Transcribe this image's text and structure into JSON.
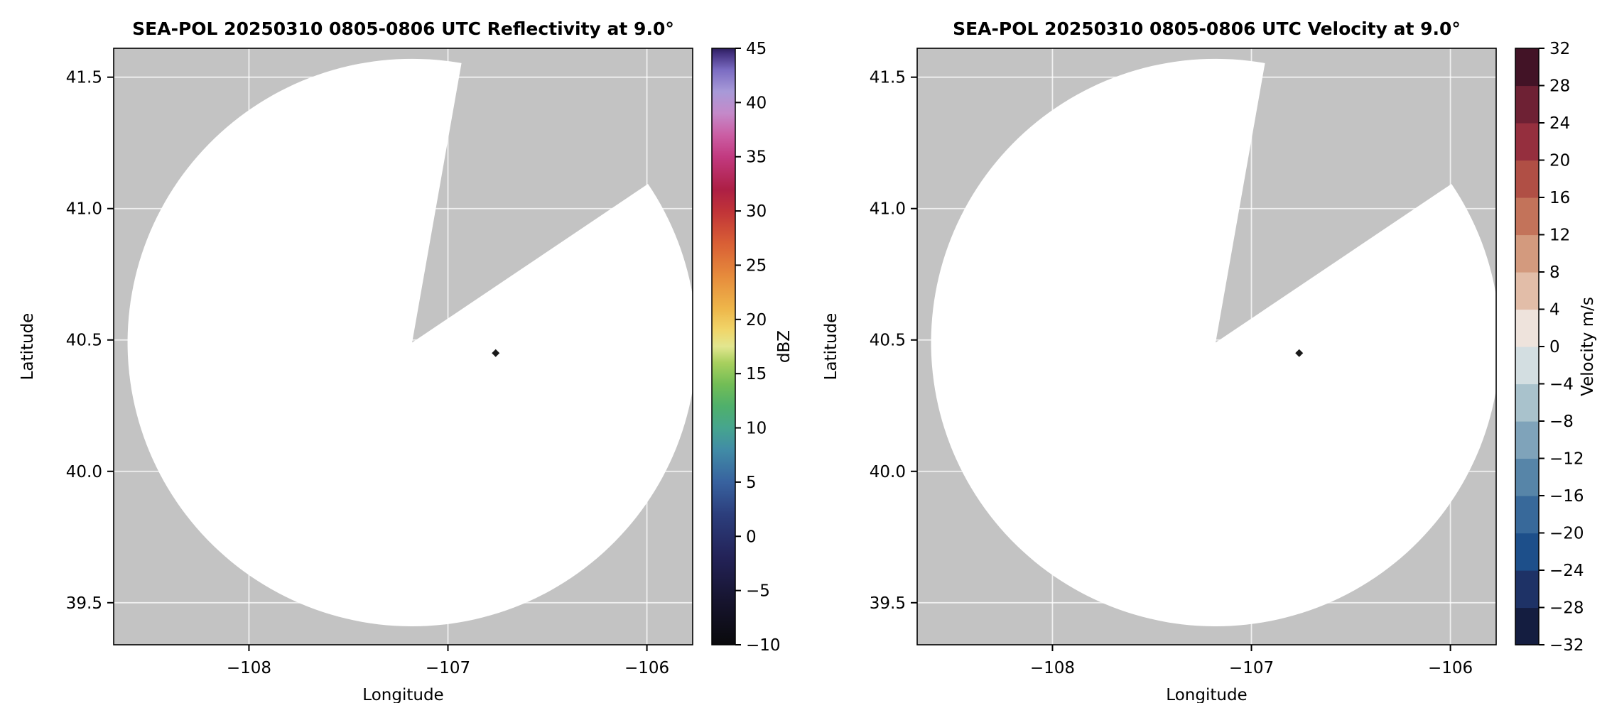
{
  "page": {
    "background_color": "#ffffff",
    "description": "Two-panel radar PPI figure: reflectivity and radial velocity at 9.0 degree elevation"
  },
  "chart_data": [
    {
      "type": "radar_ppi",
      "title": "SEA-POL 20250310 0805-0806 UTC Reflectivity at 9.0°",
      "xlabel": "Longitude",
      "ylabel": "Latitude",
      "xlim": [
        -108.68,
        -105.77
      ],
      "ylim": [
        39.34,
        41.61
      ],
      "xticks": [
        -108,
        -107,
        -106
      ],
      "xtick_labels": [
        "−108",
        "−107",
        "−106"
      ],
      "yticks": [
        39.5,
        40.0,
        40.5,
        41.0,
        41.5
      ],
      "ytick_labels": [
        "39.5",
        "40.0",
        "40.5",
        "41.0",
        "41.5"
      ],
      "grid": true,
      "grid_color": "#ffffff",
      "background_color": "#c3c3c3",
      "coverage": {
        "center_lon": -107.18,
        "center_lat": 40.49,
        "radius_lon_deg": 1.43,
        "radius_lat_deg": 1.08,
        "missing_sector_azimuth_deg": [
          10,
          56
        ],
        "fill": "#ffffff",
        "description": "White circular radar coverage disk with no echoes above threshold; grey area is no-data, including a wedge-shaped blocked sector toward the north-northeast"
      },
      "marker": {
        "lon": -106.76,
        "lat": 40.45,
        "color": "#1a1a1a",
        "shape": "diamond",
        "description": "single small dark echo pixel east of radar center"
      },
      "colorbar": {
        "label": "dBZ",
        "style": "continuous",
        "vmin": -10,
        "vmax": 45,
        "ticks": [
          -10,
          -5,
          0,
          5,
          10,
          15,
          20,
          25,
          30,
          35,
          40,
          45
        ],
        "tick_labels": [
          "−10",
          "−5",
          "0",
          "5",
          "10",
          "15",
          "20",
          "25",
          "30",
          "35",
          "40",
          "45"
        ],
        "gradient_stops": [
          [
            -10,
            "#0a0a0c"
          ],
          [
            -6,
            "#16142e"
          ],
          [
            -2,
            "#232257"
          ],
          [
            2,
            "#2c3e7c"
          ],
          [
            5,
            "#38629f"
          ],
          [
            8,
            "#418ca6"
          ],
          [
            10,
            "#46a58e"
          ],
          [
            12,
            "#4fb06b"
          ],
          [
            14,
            "#72bd56"
          ],
          [
            16,
            "#a8d05e"
          ],
          [
            17.5,
            "#e2e68f"
          ],
          [
            19,
            "#f0d66a"
          ],
          [
            21,
            "#eeb64a"
          ],
          [
            24,
            "#e68b3c"
          ],
          [
            27,
            "#d95f35"
          ],
          [
            30,
            "#c03338"
          ],
          [
            32,
            "#ad1f45"
          ],
          [
            35,
            "#c23a80"
          ],
          [
            37,
            "#cb5ea4"
          ],
          [
            39,
            "#c489c9"
          ],
          [
            41,
            "#a89ad8"
          ],
          [
            43,
            "#7b6cc2"
          ],
          [
            44.5,
            "#43317f"
          ],
          [
            45,
            "#2c1e5c"
          ]
        ]
      }
    },
    {
      "type": "radar_ppi",
      "title": "SEA-POL 20250310 0805-0806 UTC Velocity at 9.0°",
      "xlabel": "Longitude",
      "ylabel": "Latitude",
      "xlim": [
        -108.68,
        -105.77
      ],
      "ylim": [
        39.34,
        41.61
      ],
      "xticks": [
        -108,
        -107,
        -106
      ],
      "xtick_labels": [
        "−108",
        "−107",
        "−106"
      ],
      "yticks": [
        39.5,
        40.0,
        40.5,
        41.0,
        41.5
      ],
      "ytick_labels": [
        "39.5",
        "40.0",
        "40.5",
        "41.0",
        "41.5"
      ],
      "grid": true,
      "grid_color": "#ffffff",
      "background_color": "#c3c3c3",
      "coverage": {
        "center_lon": -107.18,
        "center_lat": 40.49,
        "radius_lon_deg": 1.43,
        "radius_lat_deg": 1.08,
        "missing_sector_azimuth_deg": [
          10,
          56
        ],
        "fill": "#ffffff",
        "description": "White circular radar coverage disk with no velocity echoes; grey area is no-data, including a wedge-shaped blocked sector toward the north-northeast"
      },
      "marker": {
        "lon": -106.76,
        "lat": 40.45,
        "color": "#1a1a1a",
        "shape": "diamond",
        "description": "single small dark echo pixel east of radar center"
      },
      "colorbar": {
        "label": "Velocity m/s",
        "style": "discrete",
        "vmin": -32,
        "vmax": 32,
        "ticks": [
          -32,
          -28,
          -24,
          -20,
          -16,
          -12,
          -8,
          -4,
          0,
          4,
          8,
          12,
          16,
          20,
          24,
          28,
          32
        ],
        "tick_labels": [
          "−32",
          "−28",
          "−24",
          "−20",
          "−16",
          "−12",
          "−8",
          "−4",
          "0",
          "4",
          "8",
          "12",
          "16",
          "20",
          "24",
          "28",
          "32"
        ],
        "segment_colors": [
          "#141d40",
          "#1e3266",
          "#1d4f8a",
          "#38699a",
          "#5785a8",
          "#7fa3ba",
          "#a9c2cc",
          "#d3dee1",
          "#eee3dc",
          "#e2bda8",
          "#d39a7e",
          "#c3735a",
          "#b04f45",
          "#952f3e",
          "#6e2134",
          "#421326"
        ]
      }
    }
  ]
}
